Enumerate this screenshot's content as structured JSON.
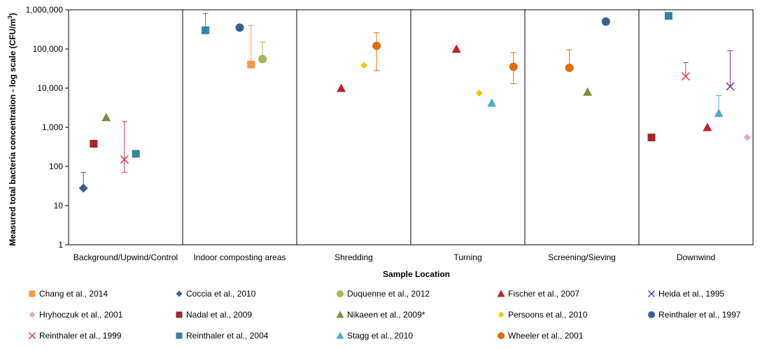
{
  "chart_data": {
    "type": "scatter",
    "ylabel": "Measured total bacteria concentration - log scale (CFU/m",
    "ylabel_sup": "3",
    "ylabel_close": ")",
    "xlabel": "Sample Location",
    "y_scale": "log",
    "ylim": [
      1,
      1000000
    ],
    "y_ticks": [
      {
        "value": 1,
        "label": "1"
      },
      {
        "value": 10,
        "label": "10"
      },
      {
        "value": 100,
        "label": "100"
      },
      {
        "value": 1000,
        "label": "1,000"
      },
      {
        "value": 10000,
        "label": "10,000"
      },
      {
        "value": 100000,
        "label": "100,000"
      },
      {
        "value": 1000000,
        "label": "1,000,000"
      }
    ],
    "categories": [
      "Background/Upwind/Control",
      "Indoor composting areas",
      "Shredding",
      "Turning",
      "Screening/Sieving",
      "Downwind"
    ],
    "legend_position": "bottom",
    "series": [
      {
        "name": "Chang et al., 2014",
        "color": "#F79646",
        "marker": "square",
        "points": [
          {
            "category": "Indoor composting areas",
            "y": 40000,
            "err_high": 400000
          }
        ]
      },
      {
        "name": "Coccia et al., 2010",
        "color": "#366092",
        "marker": "diamond",
        "points": [
          {
            "category": "Background/Upwind/Control",
            "y": 28,
            "err_high": 70
          }
        ]
      },
      {
        "name": "Duquenne et al., 2012",
        "color": "#9BBB59",
        "marker": "circle-light",
        "points": [
          {
            "category": "Indoor composting areas",
            "y": 55000,
            "err_high": 150000
          }
        ]
      },
      {
        "name": "Fischer et al., 2007",
        "color": "#C0202E",
        "marker": "triangle",
        "points": [
          {
            "category": "Turning",
            "y": 100000
          },
          {
            "category": "Shredding",
            "y": 10000
          },
          {
            "category": "Downwind",
            "y": 1000
          }
        ]
      },
      {
        "name": "Heida et al., 1995",
        "color": "#7030A0",
        "marker": "x",
        "points": [
          {
            "category": "Downwind",
            "y": 11000,
            "err_high": 90000
          }
        ]
      },
      {
        "name": "Hryhoczuk et al., 2001",
        "color": "#E7A3D0",
        "marker": "diamond",
        "points": [
          {
            "category": "Downwind",
            "y": 550
          }
        ]
      },
      {
        "name": "Nadal et al., 2009",
        "color": "#A0282E",
        "marker": "square",
        "points": [
          {
            "category": "Background/Upwind/Control",
            "y": 380
          },
          {
            "category": "Downwind",
            "y": 550
          }
        ]
      },
      {
        "name": "Nikaeen et al., 2009*",
        "color": "#76923C",
        "marker": "triangle",
        "points": [
          {
            "category": "Background/Upwind/Control",
            "y": 1800
          },
          {
            "category": "Screening/Sieving",
            "y": 8000
          }
        ]
      },
      {
        "name": "Persoons et al., 2010",
        "color": "#FFC000",
        "marker": "diamond",
        "points": [
          {
            "category": "Shredding",
            "y": 38000
          },
          {
            "category": "Turning",
            "y": 7500
          }
        ]
      },
      {
        "name": "Reinthaler et al., 1997",
        "color": "#366092",
        "marker": "circle",
        "points": [
          {
            "category": "Indoor composting areas",
            "y": 350000
          },
          {
            "category": "Screening/Sieving",
            "y": 500000
          }
        ]
      },
      {
        "name": "Reinthaler et al., 1999",
        "color": "#E8383D",
        "marker": "x",
        "points": [
          {
            "category": "Background/Upwind/Control",
            "y": 150,
            "err_low": 70,
            "err_high": 1400
          },
          {
            "category": "Downwind",
            "y": 20000,
            "err_high": 45000
          }
        ]
      },
      {
        "name": "Reinthaler et al., 2004",
        "color": "#31859C",
        "marker": "square",
        "points": [
          {
            "category": "Background/Upwind/Control",
            "y": 210
          },
          {
            "category": "Indoor composting areas",
            "y": 300000,
            "err_high": 800000
          },
          {
            "category": "Downwind",
            "y": 700000
          }
        ]
      },
      {
        "name": "Stagg et al., 2010",
        "color": "#4BACC6",
        "marker": "triangle",
        "points": [
          {
            "category": "Turning",
            "y": 4200
          },
          {
            "category": "Downwind",
            "y": 2300,
            "err_high": 6500
          }
        ]
      },
      {
        "name": "Wheeler et al., 2001",
        "color": "#E46C0A",
        "marker": "circle",
        "points": [
          {
            "category": "Shredding",
            "y": 120000,
            "err_low": 28000,
            "err_high": 260000
          },
          {
            "category": "Turning",
            "y": 35000,
            "err_low": 13000,
            "err_high": 80000
          },
          {
            "category": "Screening/Sieving",
            "y": 33000,
            "err_high": 95000
          }
        ]
      }
    ]
  }
}
